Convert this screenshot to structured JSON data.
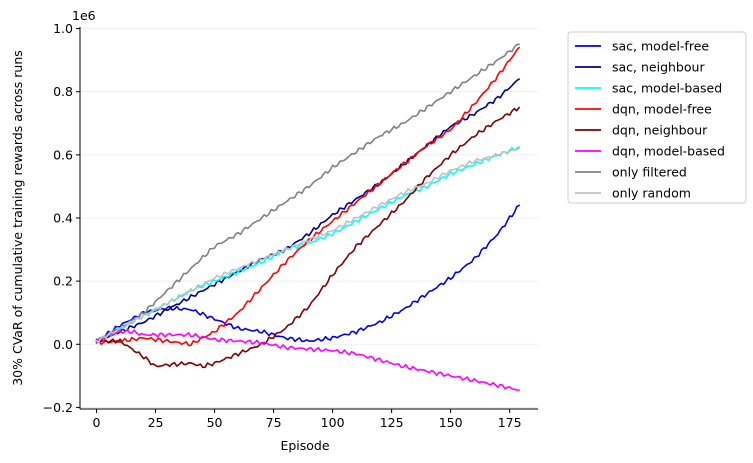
{
  "chart_data": {
    "type": "line",
    "title": "",
    "xlabel": "Episode",
    "ylabel": "30% CVaR of cumulative training rewards across runs",
    "y_offset_label": "1e6",
    "xlim": [
      -7,
      187
    ],
    "ylim": [
      -0.205,
      1.005
    ],
    "xticks": [
      0,
      25,
      50,
      75,
      100,
      125,
      150,
      175
    ],
    "xtick_labels": [
      "0",
      "25",
      "50",
      "75",
      "100",
      "125",
      "150",
      "175"
    ],
    "yticks": [
      -0.2,
      0.0,
      0.2,
      0.4,
      0.6,
      0.8,
      1.0
    ],
    "ytick_labels": [
      "−0.2",
      "0.0",
      "0.2",
      "0.4",
      "0.6",
      "0.8",
      "1.0"
    ],
    "grid": "horizontal",
    "legend_position": "outside-right",
    "series": [
      {
        "name": "sac, model-free",
        "color": "#0000ee",
        "x": [
          0,
          10,
          20,
          30,
          40,
          50,
          60,
          70,
          80,
          90,
          100,
          110,
          120,
          130,
          140,
          150,
          160,
          170,
          179
        ],
        "y": [
          0.01,
          0.06,
          0.1,
          0.115,
          0.11,
          0.08,
          0.05,
          0.04,
          0.02,
          0.01,
          0.02,
          0.04,
          0.07,
          0.11,
          0.16,
          0.21,
          0.27,
          0.35,
          0.44
        ]
      },
      {
        "name": "sac, neighbour",
        "color": "#00008b",
        "x": [
          0,
          10,
          20,
          30,
          40,
          50,
          60,
          70,
          80,
          90,
          100,
          110,
          120,
          130,
          140,
          150,
          160,
          170,
          179
        ],
        "y": [
          0.01,
          0.04,
          0.07,
          0.11,
          0.15,
          0.19,
          0.23,
          0.27,
          0.3,
          0.35,
          0.41,
          0.46,
          0.51,
          0.57,
          0.63,
          0.69,
          0.73,
          0.78,
          0.84
        ]
      },
      {
        "name": "sac, model-based",
        "color": "#00ffff",
        "x": [
          0,
          10,
          20,
          30,
          40,
          50,
          60,
          70,
          80,
          90,
          100,
          110,
          120,
          130,
          140,
          150,
          160,
          170,
          179
        ],
        "y": [
          0.01,
          0.05,
          0.09,
          0.13,
          0.17,
          0.2,
          0.23,
          0.26,
          0.3,
          0.32,
          0.35,
          0.39,
          0.43,
          0.47,
          0.5,
          0.54,
          0.57,
          0.6,
          0.625
        ]
      },
      {
        "name": "dqn, model-free",
        "color": "#ff0000",
        "x": [
          0,
          10,
          20,
          30,
          40,
          50,
          60,
          70,
          80,
          90,
          100,
          110,
          120,
          130,
          140,
          150,
          160,
          170,
          179
        ],
        "y": [
          0.005,
          0.01,
          0.02,
          0.01,
          0.0,
          0.04,
          0.1,
          0.18,
          0.26,
          0.33,
          0.39,
          0.45,
          0.51,
          0.57,
          0.63,
          0.68,
          0.76,
          0.85,
          0.94
        ]
      },
      {
        "name": "dqn, neighbour",
        "color": "#800000",
        "x": [
          0,
          10,
          20,
          25,
          30,
          40,
          45,
          50,
          60,
          70,
          80,
          90,
          100,
          110,
          120,
          130,
          140,
          150,
          160,
          170,
          179
        ],
        "y": [
          0.01,
          0.01,
          -0.04,
          -0.07,
          -0.065,
          -0.06,
          -0.07,
          -0.06,
          -0.03,
          0.0,
          0.05,
          0.12,
          0.22,
          0.31,
          0.38,
          0.45,
          0.53,
          0.6,
          0.66,
          0.71,
          0.75
        ]
      },
      {
        "name": "dqn, model-based",
        "color": "#ff00ff",
        "x": [
          0,
          10,
          15,
          20,
          30,
          40,
          50,
          60,
          70,
          80,
          90,
          100,
          110,
          120,
          130,
          140,
          150,
          160,
          170,
          179
        ],
        "y": [
          0.01,
          0.04,
          0.04,
          0.03,
          0.03,
          0.03,
          0.015,
          0.01,
          0.005,
          -0.01,
          -0.015,
          -0.02,
          -0.03,
          -0.05,
          -0.07,
          -0.085,
          -0.1,
          -0.115,
          -0.13,
          -0.145
        ]
      },
      {
        "name": "only filtered",
        "color": "#808080",
        "x": [
          0,
          10,
          20,
          30,
          40,
          50,
          60,
          70,
          80,
          90,
          100,
          110,
          120,
          130,
          140,
          150,
          160,
          170,
          179
        ],
        "y": [
          0.01,
          0.05,
          0.1,
          0.17,
          0.24,
          0.31,
          0.35,
          0.4,
          0.45,
          0.5,
          0.56,
          0.61,
          0.66,
          0.7,
          0.75,
          0.8,
          0.85,
          0.9,
          0.95
        ]
      },
      {
        "name": "only random",
        "color": "#c0c0c0",
        "x": [
          0,
          10,
          20,
          30,
          40,
          50,
          60,
          70,
          80,
          90,
          100,
          110,
          120,
          130,
          140,
          150,
          160,
          170,
          179
        ],
        "y": [
          0.01,
          0.05,
          0.09,
          0.13,
          0.17,
          0.21,
          0.24,
          0.27,
          0.3,
          0.33,
          0.36,
          0.4,
          0.44,
          0.48,
          0.51,
          0.55,
          0.58,
          0.6,
          0.62
        ]
      }
    ]
  }
}
